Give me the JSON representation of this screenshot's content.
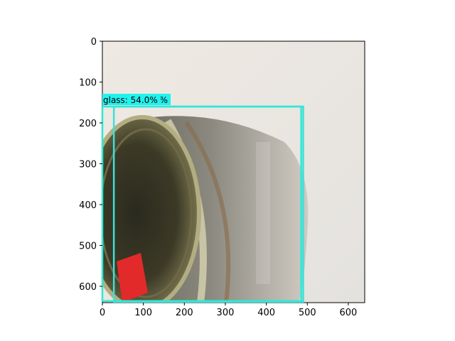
{
  "chart_data": {
    "type": "image-detection",
    "title": "",
    "xlabel": "",
    "ylabel": "",
    "xlim": [
      0,
      640
    ],
    "ylim": [
      640,
      0
    ],
    "x_ticks": [
      0,
      100,
      200,
      300,
      400,
      500,
      600
    ],
    "y_ticks": [
      0,
      100,
      200,
      300,
      400,
      500,
      600
    ],
    "detections": [
      {
        "label": "glass: 54.0%",
        "x0": 28,
        "y0": 160,
        "x1": 490,
        "y1": 638,
        "color": "#3de0d8"
      },
      {
        "label": "0%",
        "x0": 0,
        "y0": 160,
        "x1": 485,
        "y1": 636,
        "color": "#2ee8d6"
      }
    ],
    "photo_subject": "metal-lidded glass jar with red price sticker"
  }
}
